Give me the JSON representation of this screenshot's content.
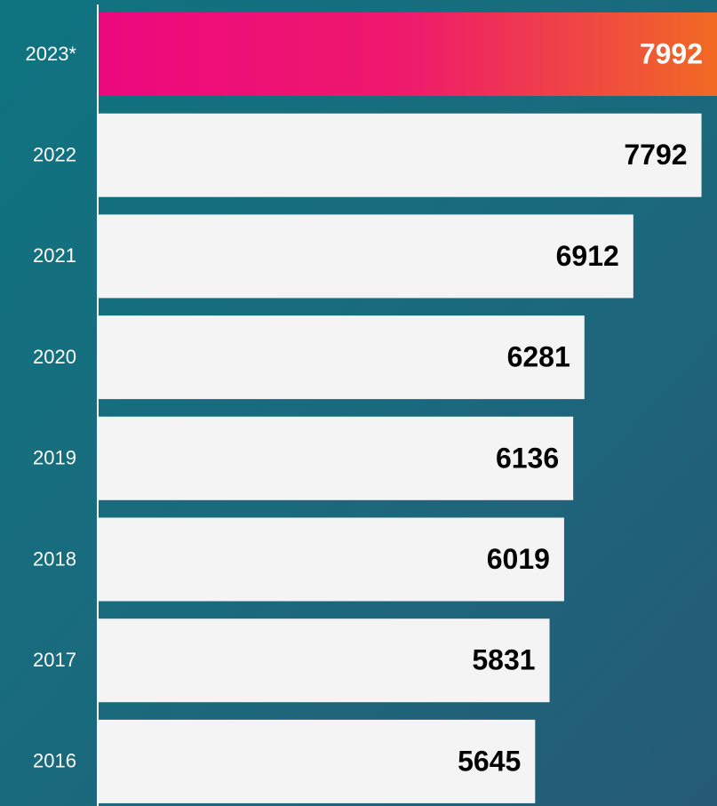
{
  "chart_data": {
    "type": "hbar",
    "categories": [
      "2023*",
      "2022",
      "2021",
      "2020",
      "2019",
      "2018",
      "2017",
      "2016"
    ],
    "values": [
      7992,
      7792,
      6912,
      6281,
      6136,
      6019,
      5831,
      5645
    ],
    "colors": [
      [
        "#ec087e",
        "#ee1a6c",
        "#f06a23"
      ],
      "#f4f4f4",
      "#f4f4f4",
      "#f4f4f4",
      "#f4f4f4",
      "#f4f4f4",
      "#f4f4f4",
      "#f4f4f4"
    ],
    "background": [
      "#0f7480",
      "#1a6a7d",
      "#255a76"
    ]
  }
}
